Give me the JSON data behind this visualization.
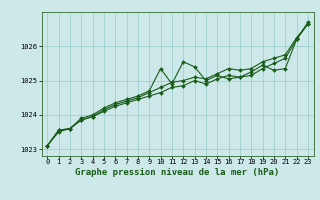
{
  "title": "Graphe pression niveau de la mer (hPa)",
  "bg_color": "#cce8e8",
  "plot_bg_color": "#cce8e8",
  "line_color": "#1a5c1a",
  "grid_color": "#99cccc",
  "xlim": [
    -0.5,
    23.5
  ],
  "ylim": [
    1022.8,
    1027.0
  ],
  "yticks": [
    1023,
    1024,
    1025,
    1026
  ],
  "xticks": [
    0,
    1,
    2,
    3,
    4,
    5,
    6,
    7,
    8,
    9,
    10,
    11,
    12,
    13,
    14,
    15,
    16,
    17,
    18,
    19,
    20,
    21,
    22,
    23
  ],
  "series1_x": [
    0,
    1,
    2,
    3,
    4,
    5,
    6,
    7,
    8,
    9,
    10,
    11,
    12,
    13,
    14,
    15,
    16,
    17,
    18,
    19,
    20,
    21,
    22,
    23
  ],
  "series1_y": [
    1023.1,
    1023.55,
    1023.6,
    1023.85,
    1023.95,
    1024.15,
    1024.3,
    1024.4,
    1024.5,
    1024.65,
    1024.8,
    1024.95,
    1025.0,
    1025.1,
    1025.05,
    1025.2,
    1025.35,
    1025.3,
    1025.35,
    1025.55,
    1025.65,
    1025.75,
    1026.25,
    1026.65
  ],
  "series2_x": [
    0,
    1,
    2,
    3,
    4,
    5,
    6,
    7,
    8,
    9,
    10,
    11,
    12,
    13,
    14,
    15,
    16,
    17,
    18,
    19,
    20,
    21,
    22,
    23
  ],
  "series2_y": [
    1023.1,
    1023.55,
    1023.6,
    1023.9,
    1024.0,
    1024.2,
    1024.35,
    1024.45,
    1024.55,
    1024.7,
    1025.35,
    1024.9,
    1025.55,
    1025.4,
    1025.0,
    1025.15,
    1025.05,
    1025.1,
    1025.25,
    1025.45,
    1025.3,
    1025.35,
    1026.2,
    1026.7
  ],
  "series3_x": [
    0,
    1,
    2,
    3,
    4,
    5,
    6,
    7,
    8,
    9,
    10,
    11,
    12,
    13,
    14,
    15,
    16,
    17,
    18,
    19,
    20,
    21,
    22,
    23
  ],
  "series3_y": [
    1023.1,
    1023.5,
    1023.6,
    1023.85,
    1023.95,
    1024.1,
    1024.25,
    1024.35,
    1024.45,
    1024.55,
    1024.65,
    1024.8,
    1024.85,
    1025.0,
    1024.9,
    1025.05,
    1025.15,
    1025.1,
    1025.15,
    1025.35,
    1025.5,
    1025.65,
    1026.2,
    1026.65
  ],
  "marker_style": "D",
  "marker_size": 2,
  "line_width": 0.8,
  "tick_fontsize": 5,
  "label_fontsize": 6.5,
  "spine_color": "#336633"
}
